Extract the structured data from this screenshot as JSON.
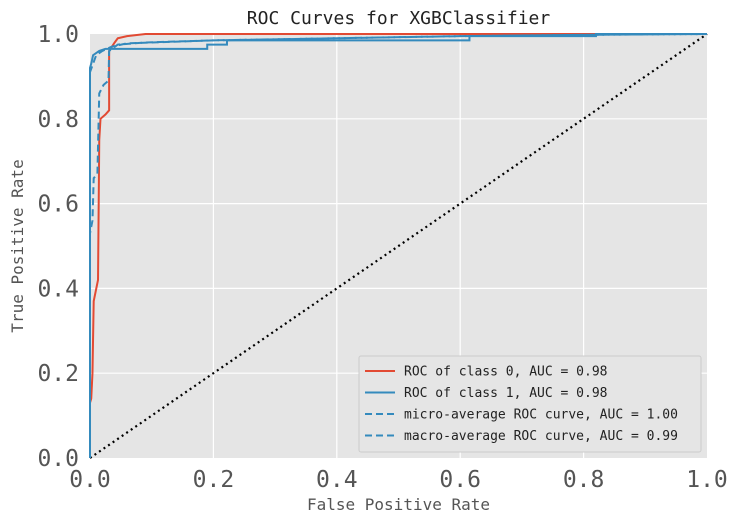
{
  "chart_data": {
    "type": "line",
    "title": "ROC Curves for XGBClassifier",
    "xlabel": "False Positive Rate",
    "ylabel": "True Positive Rate",
    "xlim": [
      0.0,
      1.0
    ],
    "ylim": [
      0.0,
      1.0
    ],
    "xticks": [
      "0.0",
      "0.2",
      "0.4",
      "0.6",
      "0.8",
      "1.0"
    ],
    "yticks": [
      "0.0",
      "0.2",
      "0.4",
      "0.6",
      "0.8",
      "1.0"
    ],
    "grid": true,
    "legend_position": "lower-right",
    "series": [
      {
        "name": "ROC of class 0, AUC = 0.98",
        "color": "#E24A33",
        "style": "solid",
        "points": [
          [
            0,
            0
          ],
          [
            0,
            0.13
          ],
          [
            0.002,
            0.14
          ],
          [
            0.004,
            0.2
          ],
          [
            0.006,
            0.37
          ],
          [
            0.013,
            0.42
          ],
          [
            0.015,
            0.75
          ],
          [
            0.017,
            0.8
          ],
          [
            0.025,
            0.81
          ],
          [
            0.031,
            0.82
          ],
          [
            0.031,
            0.96
          ],
          [
            0.04,
            0.98
          ],
          [
            0.045,
            0.99
          ],
          [
            0.06,
            0.995
          ],
          [
            0.09,
            1.0
          ],
          [
            1.0,
            1.0
          ]
        ]
      },
      {
        "name": "ROC of class 1, AUC = 0.98",
        "color": "#348ABD",
        "style": "solid",
        "points": [
          [
            0,
            0
          ],
          [
            0,
            0.92
          ],
          [
            0.002,
            0.93
          ],
          [
            0.005,
            0.95
          ],
          [
            0.015,
            0.96
          ],
          [
            0.025,
            0.965
          ],
          [
            0.19,
            0.965
          ],
          [
            0.19,
            0.975
          ],
          [
            0.222,
            0.975
          ],
          [
            0.222,
            0.985
          ],
          [
            0.615,
            0.985
          ],
          [
            0.615,
            0.995
          ],
          [
            0.82,
            0.995
          ],
          [
            0.82,
            1.0
          ],
          [
            1.0,
            1.0
          ]
        ]
      },
      {
        "name": "micro-average ROC curve, AUC = 1.00",
        "color": "#348ABD",
        "style": "dashed",
        "points": [
          [
            0,
            0
          ],
          [
            0,
            0.91
          ],
          [
            0.005,
            0.93
          ],
          [
            0.01,
            0.95
          ],
          [
            0.02,
            0.96
          ],
          [
            0.035,
            0.97
          ],
          [
            0.06,
            0.978
          ],
          [
            0.1,
            0.98
          ],
          [
            0.2,
            0.985
          ],
          [
            0.4,
            0.99
          ],
          [
            0.6,
            0.995
          ],
          [
            0.8,
            0.998
          ],
          [
            1.0,
            1.0
          ]
        ]
      },
      {
        "name": "macro-average ROC curve, AUC = 0.99",
        "color": "#348ABD",
        "style": "dashed",
        "points": [
          [
            0,
            0
          ],
          [
            0,
            0.53
          ],
          [
            0.004,
            0.56
          ],
          [
            0.006,
            0.66
          ],
          [
            0.012,
            0.67
          ],
          [
            0.015,
            0.86
          ],
          [
            0.022,
            0.88
          ],
          [
            0.03,
            0.89
          ],
          [
            0.031,
            0.96
          ],
          [
            0.045,
            0.975
          ],
          [
            0.09,
            0.98
          ],
          [
            0.2,
            0.985
          ],
          [
            0.4,
            0.99
          ],
          [
            0.6,
            0.995
          ],
          [
            0.8,
            0.998
          ],
          [
            1.0,
            1.0
          ]
        ]
      }
    ],
    "reference_line": {
      "color": "#000000",
      "style": "dotted",
      "points": [
        [
          0,
          0
        ],
        [
          1,
          1
        ]
      ]
    }
  },
  "colors": {
    "plot_background": "#E5E5E5",
    "grid": "#FFFFFF",
    "text": "#555555"
  }
}
